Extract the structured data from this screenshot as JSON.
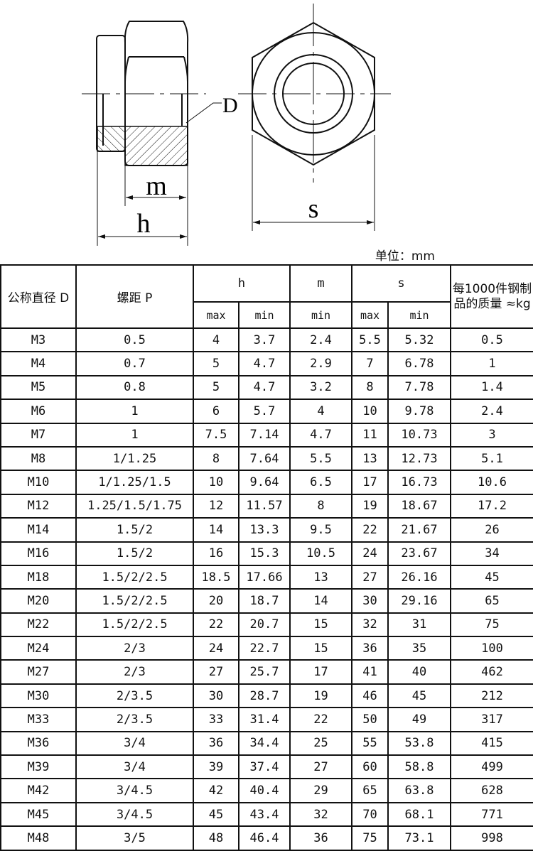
{
  "drawing": {
    "label_D": "D",
    "label_m": "m",
    "label_h": "h",
    "label_s": "s"
  },
  "unit": "单位：mm",
  "table": {
    "headers": {
      "diameter": "公称直径 D",
      "pitch": "螺距 P",
      "h": "h",
      "m": "m",
      "s": "s",
      "mass": "每1000件钢制品的质量 ≈kg",
      "h_max": "max",
      "h_min": "min",
      "m_min": "min",
      "s_max": "max",
      "s_min": "min"
    },
    "rows": [
      [
        "M3",
        "0.5",
        "4",
        "3.7",
        "2.4",
        "5.5",
        "5.32",
        "0.5"
      ],
      [
        "M4",
        "0.7",
        "5",
        "4.7",
        "2.9",
        "7",
        "6.78",
        "1"
      ],
      [
        "M5",
        "0.8",
        "5",
        "4.7",
        "3.2",
        "8",
        "7.78",
        "1.4"
      ],
      [
        "M6",
        "1",
        "6",
        "5.7",
        "4",
        "10",
        "9.78",
        "2.4"
      ],
      [
        "M7",
        "1",
        "7.5",
        "7.14",
        "4.7",
        "11",
        "10.73",
        "3"
      ],
      [
        "M8",
        "1/1.25",
        "8",
        "7.64",
        "5.5",
        "13",
        "12.73",
        "5.1"
      ],
      [
        "M10",
        "1/1.25/1.5",
        "10",
        "9.64",
        "6.5",
        "17",
        "16.73",
        "10.6"
      ],
      [
        "M12",
        "1.25/1.5/1.75",
        "12",
        "11.57",
        "8",
        "19",
        "18.67",
        "17.2"
      ],
      [
        "M14",
        "1.5/2",
        "14",
        "13.3",
        "9.5",
        "22",
        "21.67",
        "26"
      ],
      [
        "M16",
        "1.5/2",
        "16",
        "15.3",
        "10.5",
        "24",
        "23.67",
        "34"
      ],
      [
        "M18",
        "1.5/2/2.5",
        "18.5",
        "17.66",
        "13",
        "27",
        "26.16",
        "45"
      ],
      [
        "M20",
        "1.5/2/2.5",
        "20",
        "18.7",
        "14",
        "30",
        "29.16",
        "65"
      ],
      [
        "M22",
        "1.5/2/2.5",
        "22",
        "20.7",
        "15",
        "32",
        "31",
        "75"
      ],
      [
        "M24",
        "2/3",
        "24",
        "22.7",
        "15",
        "36",
        "35",
        "100"
      ],
      [
        "M27",
        "2/3",
        "27",
        "25.7",
        "17",
        "41",
        "40",
        "462"
      ],
      [
        "M30",
        "2/3.5",
        "30",
        "28.7",
        "19",
        "46",
        "45",
        "212"
      ],
      [
        "M33",
        "2/3.5",
        "33",
        "31.4",
        "22",
        "50",
        "49",
        "317"
      ],
      [
        "M36",
        "3/4",
        "36",
        "34.4",
        "25",
        "55",
        "53.8",
        "415"
      ],
      [
        "M39",
        "3/4",
        "39",
        "37.4",
        "27",
        "60",
        "58.8",
        "499"
      ],
      [
        "M42",
        "3/4.5",
        "42",
        "40.4",
        "29",
        "65",
        "63.8",
        "628"
      ],
      [
        "M45",
        "3/4.5",
        "45",
        "43.4",
        "32",
        "70",
        "68.1",
        "771"
      ],
      [
        "M48",
        "3/5",
        "48",
        "46.4",
        "36",
        "75",
        "73.1",
        "998"
      ]
    ]
  }
}
